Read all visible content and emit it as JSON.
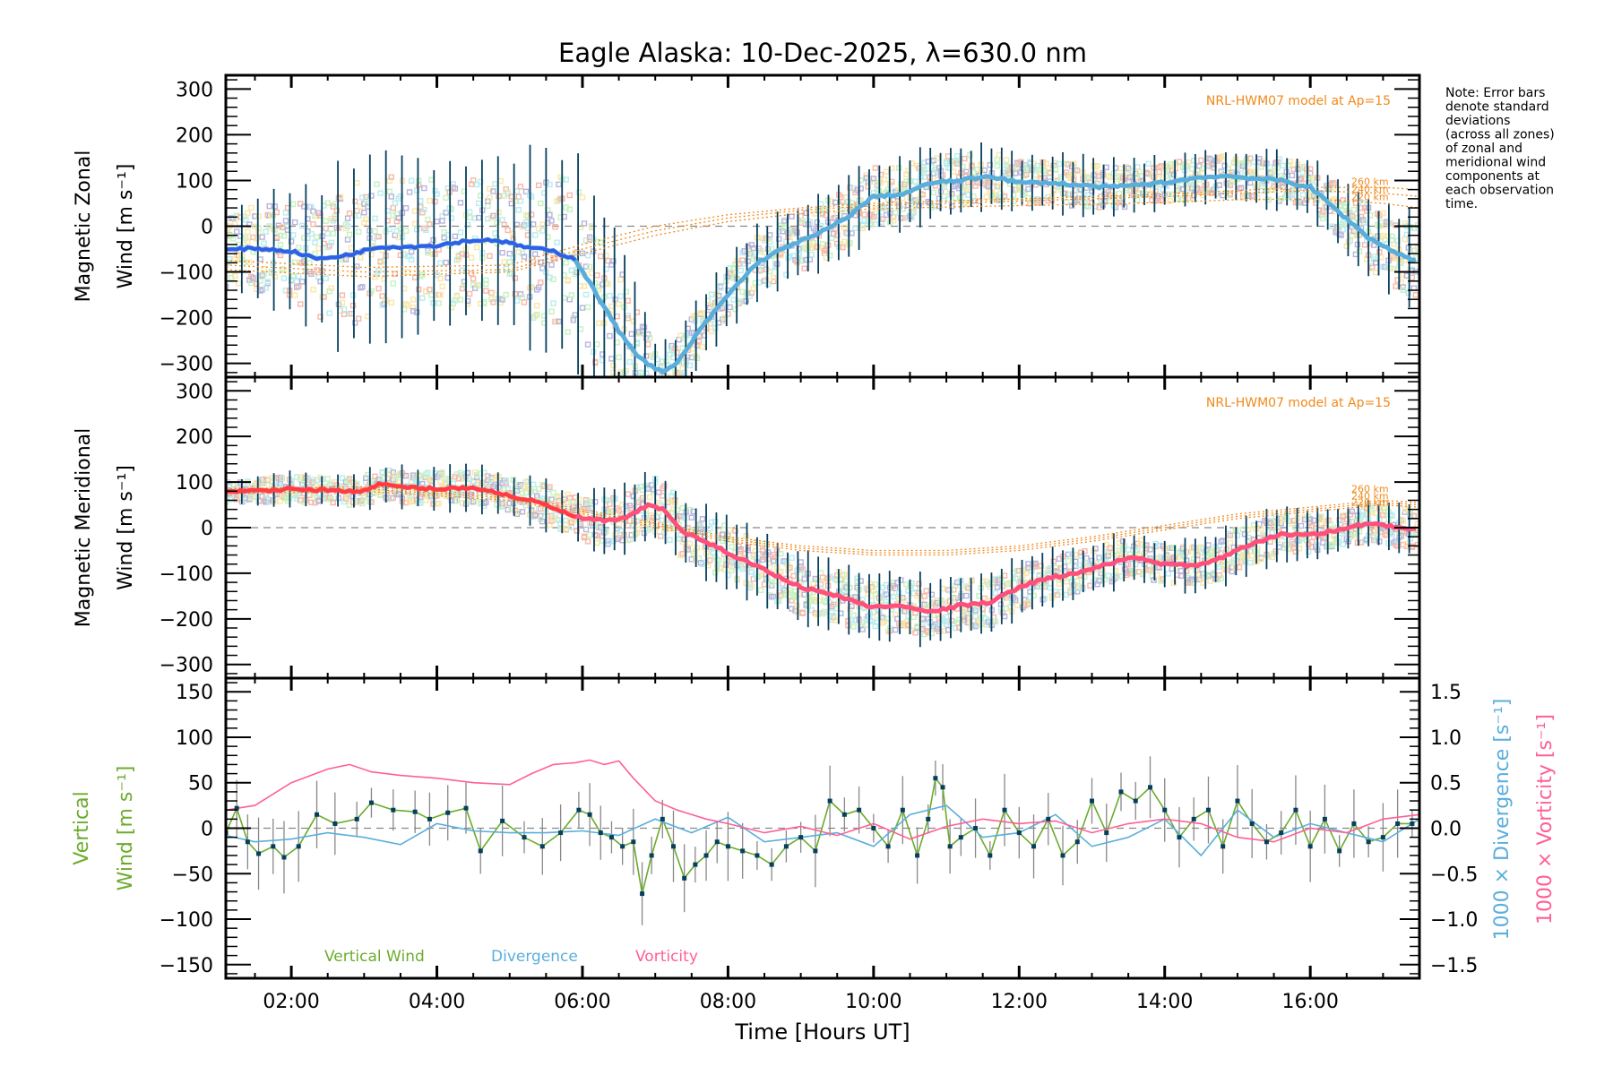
{
  "chart_data": {
    "type": "line",
    "title": "Eagle Alaska: 10-Dec-2025, λ=630.0 nm",
    "xlabel": "Time [Hours UT]",
    "xlim": [
      1.1,
      17.5
    ],
    "x_ticks": [
      {
        "value": 2,
        "label": "02:00"
      },
      {
        "value": 4,
        "label": "04:00"
      },
      {
        "value": 6,
        "label": "06:00"
      },
      {
        "value": 8,
        "label": "08:00"
      },
      {
        "value": 10,
        "label": "10:00"
      },
      {
        "value": 12,
        "label": "12:00"
      },
      {
        "value": 14,
        "label": "14:00"
      },
      {
        "value": 16,
        "label": "16:00"
      }
    ],
    "note": [
      "Note: Error bars",
      "denote standard",
      "deviations",
      "(across all zones)",
      "of zonal and",
      "meridional wind",
      "components at",
      "each observation",
      "time."
    ],
    "panels": [
      {
        "id": "zonal",
        "ylabel_line1": "Magnetic Zonal",
        "ylabel_line2": "Wind [m s⁻¹]",
        "ylim": [
          -330,
          330
        ],
        "y_ticks": [
          300,
          200,
          100,
          0,
          -100,
          -200,
          -300
        ],
        "model_label": "NRL-HWM07 model at Ap=15",
        "altitude_labels": [
          "260 km",
          "240 km",
          "220 km"
        ],
        "grid": false,
        "zero_line": true,
        "series": [
          {
            "name": "Mean zonal wind",
            "color": "#5aaedc",
            "x": [
              1.1,
              1.5,
              2.0,
              2.4,
              2.8,
              3.2,
              3.6,
              4.0,
              4.4,
              4.8,
              5.2,
              5.6,
              5.9,
              6.2,
              6.5,
              6.8,
              7.1,
              7.3,
              7.6,
              8.0,
              8.4,
              8.8,
              9.2,
              9.6,
              10.0,
              10.4,
              10.8,
              11.2,
              11.6,
              12.0,
              12.4,
              12.8,
              13.2,
              13.6,
              14.0,
              14.4,
              14.8,
              15.2,
              15.6,
              16.0,
              16.4,
              16.8,
              17.2,
              17.5
            ],
            "y": [
              -52,
              -48,
              -55,
              -72,
              -62,
              -45,
              -45,
              -42,
              -32,
              -30,
              -45,
              -55,
              -72,
              -150,
              -230,
              -290,
              -320,
              -300,
              -230,
              -150,
              -80,
              -45,
              -20,
              15,
              65,
              70,
              95,
              100,
              110,
              95,
              95,
              90,
              85,
              90,
              95,
              105,
              110,
              105,
              100,
              85,
              30,
              -25,
              -60,
              -78
            ]
          },
          {
            "name": "Error bar half-width (std dev)",
            "color": "#063f5c",
            "x": [
              1.1,
              2.0,
              3.0,
              4.0,
              5.0,
              5.8,
              6.5,
              7.0,
              8.0,
              9.0,
              10.0,
              11.0,
              12.0,
              13.0,
              14.0,
              15.0,
              16.0,
              17.0,
              17.5
            ],
            "y": [
              100,
              130,
              200,
              180,
              170,
              220,
              180,
              60,
              70,
              80,
              80,
              70,
              60,
              60,
              55,
              55,
              60,
              90,
              100
            ]
          }
        ],
        "model_curves": [
          {
            "name": "260 km",
            "color": "#f08a1c",
            "x": [
              1.1,
              3,
              5,
              6,
              7,
              8,
              9,
              10,
              11,
              12,
              13,
              14,
              15,
              16,
              17,
              17.5
            ],
            "y": [
              -75,
              -90,
              -85,
              -40,
              0,
              25,
              40,
              50,
              55,
              60,
              65,
              70,
              78,
              85,
              85,
              80
            ]
          },
          {
            "name": "240 km",
            "color": "#f08a1c",
            "x": [
              1.1,
              3,
              5,
              6,
              7,
              8,
              9,
              10,
              11,
              12,
              13,
              14,
              15,
              16,
              17,
              17.5
            ],
            "y": [
              -85,
              -100,
              -95,
              -50,
              -10,
              18,
              35,
              45,
              50,
              55,
              60,
              65,
              72,
              78,
              72,
              65
            ]
          },
          {
            "name": "220 km",
            "color": "#f08a1c",
            "x": [
              1.1,
              3,
              5,
              6,
              7,
              8,
              9,
              10,
              11,
              12,
              13,
              14,
              15,
              16,
              17,
              17.5
            ],
            "y": [
              -95,
              -110,
              -100,
              -60,
              -20,
              10,
              28,
              38,
              42,
              45,
              48,
              52,
              58,
              60,
              50,
              40
            ]
          }
        ]
      },
      {
        "id": "meridional",
        "ylabel_line1": "Magnetic Meridional",
        "ylabel_line2": "Wind [m s⁻¹]",
        "ylim": [
          -330,
          330
        ],
        "y_ticks": [
          300,
          200,
          100,
          0,
          -100,
          -200,
          -300
        ],
        "model_label": "NRL-HWM07 model at Ap=15",
        "altitude_labels": [
          "260 km",
          "240 km",
          "220 km"
        ],
        "grid": false,
        "zero_line": true,
        "series": [
          {
            "name": "Mean meridional wind",
            "color": "#ff4f7b",
            "x": [
              1.1,
              1.5,
              2.0,
              2.5,
              3.0,
              3.2,
              3.6,
              4.0,
              4.5,
              5.0,
              5.4,
              5.8,
              6.0,
              6.3,
              6.6,
              6.9,
              7.1,
              7.4,
              7.8,
              8.2,
              8.6,
              9.0,
              9.5,
              10.0,
              10.4,
              10.8,
              11.2,
              11.6,
              12.0,
              12.4,
              12.8,
              13.2,
              13.6,
              14.0,
              14.4,
              14.8,
              15.2,
              15.6,
              16.0,
              16.4,
              16.8,
              17.2,
              17.5
            ],
            "y": [
              78,
              80,
              85,
              82,
              80,
              95,
              88,
              85,
              88,
              70,
              55,
              30,
              20,
              15,
              20,
              50,
              40,
              -10,
              -40,
              -70,
              -100,
              -130,
              -150,
              -175,
              -170,
              -185,
              -170,
              -165,
              -130,
              -110,
              -100,
              -80,
              -65,
              -80,
              -85,
              -65,
              -35,
              -15,
              -15,
              -5,
              10,
              0,
              -5
            ]
          },
          {
            "name": "Error bar half-width (std dev)",
            "color": "#063f5c",
            "x": [
              1.1,
              3.0,
              5.0,
              6.0,
              7.0,
              8.0,
              9.0,
              10.0,
              11.0,
              12.0,
              13.0,
              14.0,
              15.0,
              16.0,
              17.0,
              17.5
            ],
            "y": [
              30,
              40,
              50,
              60,
              80,
              70,
              75,
              70,
              70,
              60,
              55,
              50,
              60,
              50,
              50,
              55
            ]
          }
        ],
        "model_curves": [
          {
            "name": "260 km",
            "color": "#f08a1c",
            "x": [
              1.1,
              3,
              5,
              6,
              7,
              8,
              9,
              10,
              11,
              12,
              13,
              14,
              15,
              16,
              17,
              17.5
            ],
            "y": [
              85,
              90,
              70,
              40,
              10,
              -20,
              -40,
              -50,
              -50,
              -40,
              -20,
              5,
              30,
              45,
              60,
              55
            ]
          },
          {
            "name": "240 km",
            "color": "#f08a1c",
            "x": [
              1.1,
              3,
              5,
              6,
              7,
              8,
              9,
              10,
              11,
              12,
              13,
              14,
              15,
              16,
              17,
              17.5
            ],
            "y": [
              80,
              85,
              65,
              35,
              5,
              -25,
              -45,
              -55,
              -55,
              -45,
              -25,
              0,
              25,
              40,
              55,
              50
            ]
          },
          {
            "name": "220 km",
            "color": "#f08a1c",
            "x": [
              1.1,
              3,
              5,
              6,
              7,
              8,
              9,
              10,
              11,
              12,
              13,
              14,
              15,
              16,
              17,
              17.5
            ],
            "y": [
              75,
              80,
              60,
              30,
              0,
              -30,
              -50,
              -60,
              -60,
              -50,
              -30,
              -5,
              20,
              35,
              50,
              45
            ]
          }
        ]
      },
      {
        "id": "vertical",
        "ylabel_line1": "Vertical",
        "ylabel_line2": "Wind [m s⁻¹]",
        "ylim": [
          -165,
          165
        ],
        "y_ticks": [
          150,
          100,
          50,
          0,
          -50,
          -100,
          -150
        ],
        "y2label_divergence": "1000 × Divergence [s⁻¹]",
        "y2label_vorticity": "1000 × Vorticity [s⁻¹]",
        "y2lim": [
          -1.65,
          1.65
        ],
        "y2_ticks": [
          "1.5",
          "1.0",
          "0.5",
          "0.0",
          "−0.5",
          "−1.0",
          "−1.5"
        ],
        "y2_tick_values": [
          1.5,
          1.0,
          0.5,
          0.0,
          -0.5,
          -1.0,
          -1.5
        ],
        "legend": [
          {
            "label": "Vertical Wind",
            "color": "#6aac2c"
          },
          {
            "label": "Divergence",
            "color": "#5aaedc"
          },
          {
            "label": "Vorticity",
            "color": "#ff5f95"
          }
        ],
        "legend_position": "bottom-left",
        "zero_line": true,
        "series": [
          {
            "name": "Vertical Wind",
            "axis": "left",
            "color": "#6aac2c",
            "x": [
              1.1,
              1.25,
              1.4,
              1.55,
              1.75,
              1.9,
              2.1,
              2.35,
              2.6,
              2.9,
              3.1,
              3.4,
              3.7,
              3.9,
              4.15,
              4.4,
              4.6,
              4.9,
              5.2,
              5.45,
              5.7,
              5.95,
              6.1,
              6.25,
              6.4,
              6.55,
              6.7,
              6.82,
              6.95,
              7.1,
              7.25,
              7.4,
              7.55,
              7.7,
              7.85,
              8.0,
              8.2,
              8.4,
              8.6,
              8.8,
              9.0,
              9.2,
              9.4,
              9.6,
              9.8,
              10.0,
              10.2,
              10.4,
              10.6,
              10.75,
              10.85,
              10.95,
              11.05,
              11.2,
              11.4,
              11.6,
              11.8,
              12.0,
              12.2,
              12.4,
              12.6,
              12.8,
              13.0,
              13.2,
              13.4,
              13.6,
              13.8,
              14.0,
              14.2,
              14.4,
              14.6,
              14.8,
              15.0,
              15.2,
              15.4,
              15.6,
              15.8,
              16.0,
              16.2,
              16.4,
              16.6,
              16.8,
              17.0,
              17.2,
              17.4
            ],
            "y": [
              -5,
              22,
              -15,
              -28,
              -20,
              -32,
              -20,
              15,
              5,
              10,
              28,
              20,
              18,
              10,
              17,
              22,
              -25,
              8,
              -10,
              -20,
              -5,
              20,
              15,
              -5,
              -10,
              -20,
              -15,
              -72,
              -30,
              10,
              -20,
              -55,
              -40,
              -30,
              -15,
              -20,
              -25,
              -30,
              -40,
              -20,
              -10,
              -25,
              30,
              15,
              20,
              0,
              -20,
              20,
              -30,
              10,
              55,
              45,
              -20,
              -10,
              0,
              -30,
              20,
              -5,
              -20,
              10,
              -30,
              -15,
              30,
              -5,
              40,
              30,
              45,
              20,
              -10,
              10,
              20,
              -20,
              30,
              5,
              -15,
              -5,
              20,
              -20,
              10,
              -25,
              5,
              -15,
              -10,
              5,
              5
            ]
          },
          {
            "name": "Divergence",
            "axis": "right",
            "color": "#5aaedc",
            "x": [
              1.1,
              1.5,
              2.0,
              2.5,
              3.0,
              3.5,
              4.0,
              4.5,
              5.0,
              5.5,
              6.0,
              6.5,
              7.0,
              7.5,
              8.0,
              8.5,
              9.0,
              9.5,
              10.0,
              10.5,
              11.0,
              11.5,
              12.0,
              12.5,
              13.0,
              13.5,
              14.0,
              14.5,
              15.0,
              15.5,
              16.0,
              16.5,
              17.0,
              17.5
            ],
            "y": [
              -0.08,
              -0.15,
              -0.12,
              -0.05,
              -0.1,
              -0.18,
              0.05,
              -0.03,
              -0.05,
              -0.05,
              -0.03,
              -0.08,
              0.1,
              -0.05,
              0.12,
              -0.15,
              -0.1,
              -0.05,
              -0.2,
              0.15,
              0.25,
              -0.1,
              -0.05,
              0.15,
              -0.2,
              -0.1,
              0.1,
              -0.3,
              0.2,
              -0.1,
              0.05,
              -0.05,
              -0.15,
              0.1
            ]
          },
          {
            "name": "Vorticity",
            "axis": "right",
            "color": "#ff5f95",
            "x": [
              1.1,
              1.5,
              2.0,
              2.5,
              2.8,
              3.1,
              3.5,
              4.0,
              4.5,
              5.0,
              5.3,
              5.6,
              5.9,
              6.1,
              6.3,
              6.5,
              6.7,
              7.0,
              7.3,
              7.7,
              8.0,
              8.5,
              9.0,
              9.5,
              10.0,
              10.5,
              11.0,
              11.5,
              12.0,
              12.5,
              13.0,
              13.5,
              14.0,
              14.5,
              15.0,
              15.5,
              16.0,
              16.5,
              17.0,
              17.5
            ],
            "y": [
              0.2,
              0.25,
              0.5,
              0.65,
              0.7,
              0.62,
              0.58,
              0.55,
              0.5,
              0.48,
              0.6,
              0.7,
              0.72,
              0.75,
              0.7,
              0.74,
              0.55,
              0.3,
              0.2,
              0.1,
              0.05,
              -0.05,
              0.02,
              -0.08,
              0.05,
              -0.12,
              0.02,
              0.1,
              0.05,
              0.08,
              -0.05,
              0.05,
              0.1,
              0.05,
              -0.1,
              -0.15,
              0.0,
              -0.05,
              0.1,
              0.15
            ]
          }
        ]
      }
    ]
  }
}
